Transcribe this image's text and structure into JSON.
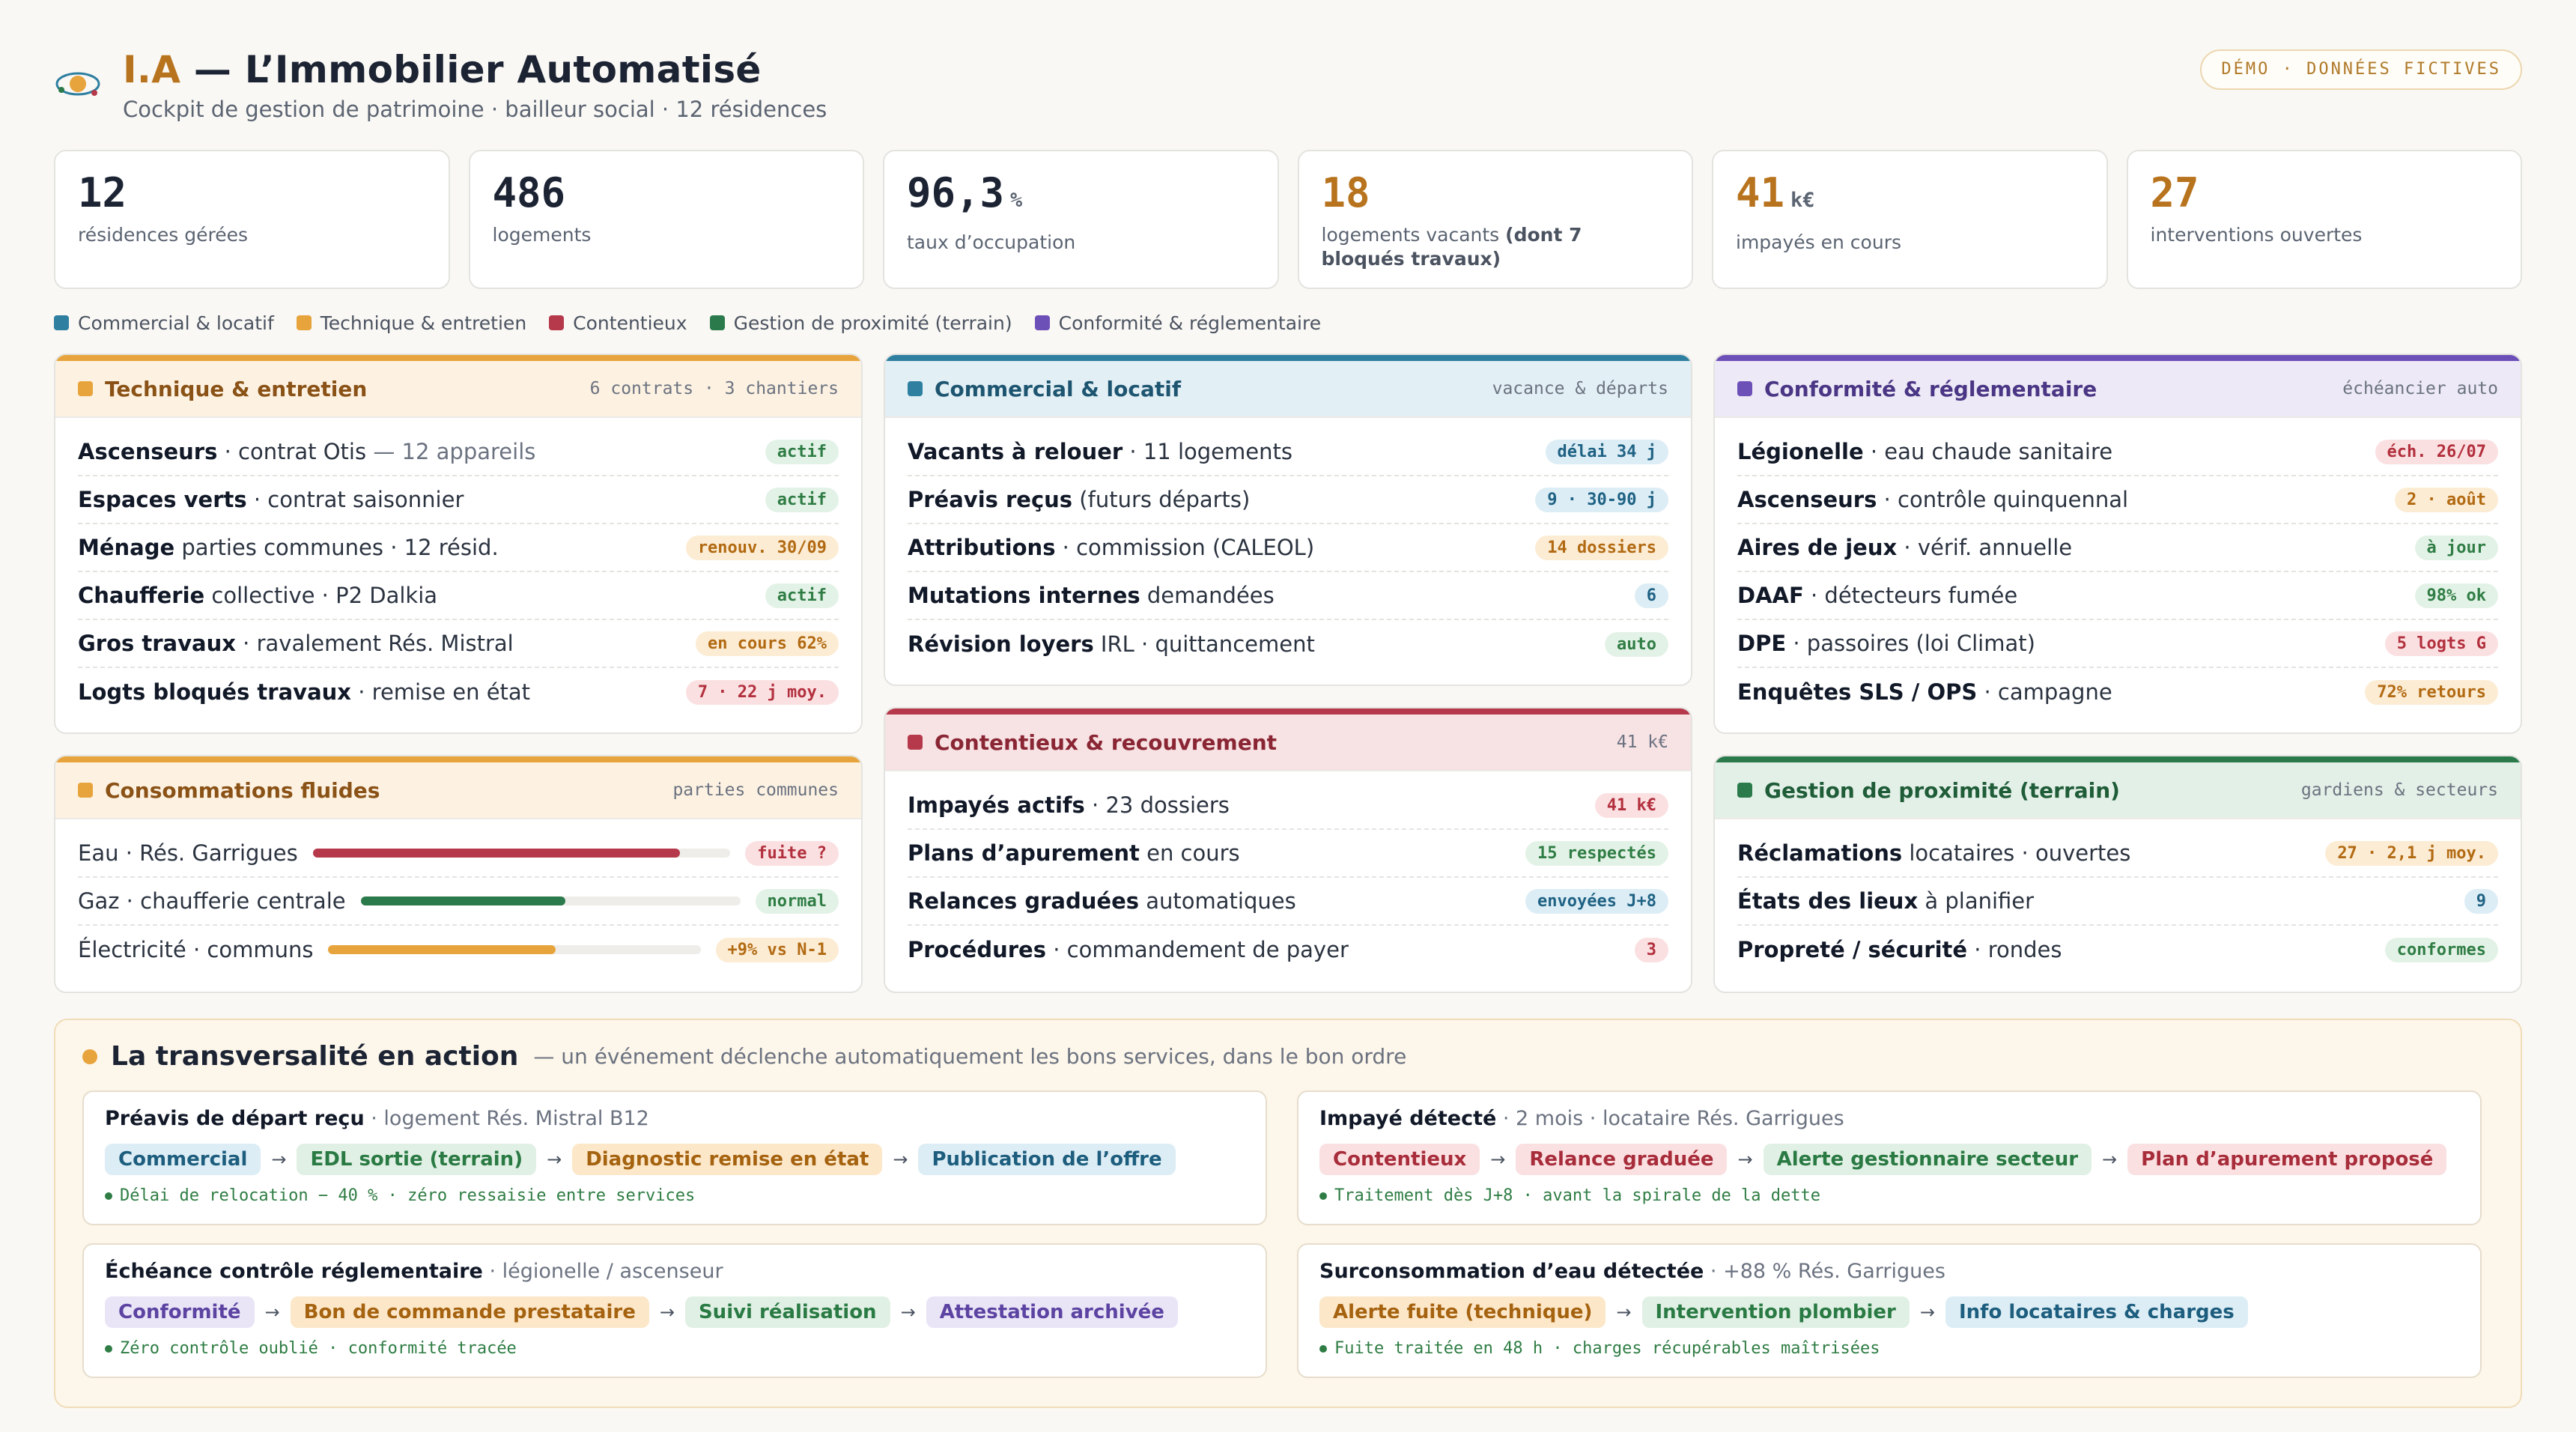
{
  "header": {
    "brand": "I.A",
    "title_rest": " — L’Immobilier Automatisé",
    "subtitle": "Cockpit de gestion de patrimoine · bailleur social · 12 résidences",
    "demo_badge": "DÉMO · DONNÉES FICTIVES"
  },
  "kpis": [
    {
      "value": "12",
      "unit": "",
      "label": "résidences gérées",
      "label_bold": "",
      "accent": false
    },
    {
      "value": "486",
      "unit": "",
      "label": "logements",
      "label_bold": "",
      "accent": false
    },
    {
      "value": "96,3",
      "unit": "%",
      "label": "taux d’occupation",
      "label_bold": "",
      "accent": false
    },
    {
      "value": "18",
      "unit": "",
      "label": "logements vacants ",
      "label_bold": "(dont 7 bloqués travaux)",
      "accent": true
    },
    {
      "value": "41",
      "unit": "k€",
      "label": "impayés en cours",
      "label_bold": "",
      "accent": true
    },
    {
      "value": "27",
      "unit": "",
      "label": "interventions ouvertes",
      "label_bold": "",
      "accent": true
    }
  ],
  "legend": [
    {
      "label": "Commercial & locatif",
      "color": "#2e7fa0"
    },
    {
      "label": "Technique & entretien",
      "color": "#e8a43c"
    },
    {
      "label": "Contentieux",
      "color": "#b5394a"
    },
    {
      "label": "Gestion de proximité (terrain)",
      "color": "#2b7a4b"
    },
    {
      "label": "Conformité & réglementaire",
      "color": "#6d4fb8"
    }
  ],
  "panels": {
    "technique": {
      "title": "Technique & entretien",
      "meta": "6 contrats · 3 chantiers",
      "rows": [
        {
          "bold": "Ascenseurs",
          "text": " · contrat Otis ",
          "muted": "— 12 appareils",
          "badge": "actif"
        },
        {
          "bold": "Espaces verts",
          "text": " · contrat saisonnier",
          "muted": "",
          "badge": "actif"
        },
        {
          "bold": "Ménage",
          "text": " parties communes · 12 résid.",
          "muted": "",
          "badge": "renouv. 30/09"
        },
        {
          "bold": "Chaufferie",
          "text": " collective · P2 Dalkia",
          "muted": "",
          "badge": "actif"
        },
        {
          "bold": "Gros travaux",
          "text": " · ravalement Rés. Mistral",
          "muted": "",
          "badge": "en cours 62%"
        },
        {
          "bold": "Logts bloqués travaux",
          "text": " · remise en état",
          "muted": "",
          "badge": "7 · 22 j moy."
        }
      ]
    },
    "commercial": {
      "title": "Commercial & locatif",
      "meta": "vacance & départs",
      "rows": [
        {
          "bold": "Vacants à relouer",
          "text": " · 11 logements",
          "badge": "délai 34 j"
        },
        {
          "bold": "Préavis reçus",
          "text": " (futurs départs)",
          "badge": "9 · 30-90 j"
        },
        {
          "bold": "Attributions",
          "text": " · commission (CALEOL)",
          "badge": "14 dossiers"
        },
        {
          "bold": "Mutations internes",
          "text": " demandées",
          "badge": "6"
        },
        {
          "bold": "Révision loyers",
          "text": " IRL · quittancement",
          "badge": "auto"
        }
      ]
    },
    "conformite": {
      "title": "Conformité & réglementaire",
      "meta": "échéancier auto",
      "rows": [
        {
          "bold": "Légionelle",
          "text": " · eau chaude sanitaire",
          "badge": "éch. 26/07"
        },
        {
          "bold": "Ascenseurs",
          "text": " · contrôle quinquennal",
          "badge": "2 · août"
        },
        {
          "bold": "Aires de jeux",
          "text": " · vérif. annuelle",
          "badge": "à jour"
        },
        {
          "bold": "DAAF",
          "text": " · détecteurs fumée",
          "badge": "98% ok"
        },
        {
          "bold": "DPE",
          "text": " · passoires (loi Climat)",
          "badge": "5 logts G"
        },
        {
          "bold": "Enquêtes SLS / OPS",
          "text": " · campagne",
          "badge": "72% retours"
        }
      ]
    },
    "fluides": {
      "title": "Consommations fluides",
      "meta": "parties communes",
      "rows": [
        {
          "label": "Eau · Rés. Garrigues",
          "fill": 0.88,
          "color": "#b5394a",
          "badge": "fuite ?"
        },
        {
          "label": "Gaz · chaufferie centrale",
          "fill": 0.54,
          "color": "#2b7a4b",
          "badge": "normal"
        },
        {
          "label": "Électricité · communs",
          "fill": 0.61,
          "color": "#e8a43c",
          "badge": "+9% vs N-1"
        }
      ]
    },
    "contentieux": {
      "title": "Contentieux & recouvrement",
      "meta": "41 k€",
      "rows": [
        {
          "bold": "Impayés actifs",
          "text": " · 23 dossiers",
          "badge": "41 k€"
        },
        {
          "bold": "Plans d’apurement",
          "text": " en cours",
          "badge": "15 respectés"
        },
        {
          "bold": "Relances graduées",
          "text": " automatiques",
          "badge": "envoyées J+8"
        },
        {
          "bold": "Procédures",
          "text": " · commandement de payer",
          "badge": "3"
        }
      ]
    },
    "proximite": {
      "title": "Gestion de proximité (terrain)",
      "meta": "gardiens & secteurs",
      "rows": [
        {
          "bold": "Réclamations",
          "text": " locataires · ouvertes",
          "badge": "27 · 2,1 j moy."
        },
        {
          "bold": "États des lieux",
          "text": " à planifier",
          "badge": "9"
        },
        {
          "bold": "Propreté / sécurité",
          "text": " · rondes",
          "badge": "conformes"
        }
      ]
    }
  },
  "transversal": {
    "title": "La transversalité en action",
    "subtitle": "— un événement déclenche automatiquement les bons services, dans le bon ordre",
    "flows": [
      {
        "title_bold": "Préavis de départ reçu",
        "title_rest": " · logement Rés. Mistral B12",
        "chips": [
          "Commercial",
          "EDL sortie (terrain)",
          "Diagnostic remise en état",
          "Publication de l’offre"
        ],
        "note": "Délai de relocation − 40 % · zéro ressaisie entre services"
      },
      {
        "title_bold": "Impayé détecté",
        "title_rest": " · 2 mois · locataire Rés. Garrigues",
        "chips": [
          "Contentieux",
          "Relance graduée",
          "Alerte gestionnaire secteur",
          "Plan d’apurement proposé"
        ],
        "note": "Traitement dès J+8 · avant la spirale de la dette"
      },
      {
        "title_bold": "Échéance contrôle réglementaire",
        "title_rest": " · légionelle / ascenseur",
        "chips": [
          "Conformité",
          "Bon de commande prestataire",
          "Suivi réalisation",
          "Attestation archivée"
        ],
        "note": "Zéro contrôle oublié · conformité tracée"
      },
      {
        "title_bold": "Surconsommation d’eau détectée",
        "title_rest": " · +88 % Rés. Garrigues",
        "chips": [
          "Alerte fuite (technique)",
          "Intervention plombier",
          "Info locataires & charges"
        ],
        "note": "Fuite traitée en 48 h · charges récupérables maîtrisées"
      }
    ]
  }
}
